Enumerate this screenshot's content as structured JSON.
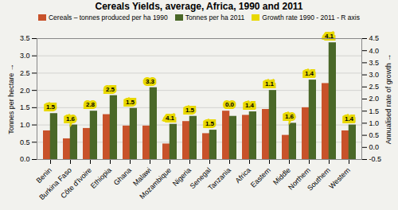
{
  "chart_data": {
    "type": "bar",
    "title": "Cereals Yields, average, Africa, 1990 and 2011",
    "categories": [
      "Benin",
      "Burkina Faso",
      "Côte d'Ivoire",
      "Ethiopia",
      "Ghana",
      "Malawi",
      "Mozambique",
      "Nigeria",
      "Senegal",
      "Tanzania",
      "Africa",
      "Eastern",
      "Middle",
      "Northern",
      "Southern",
      "Western"
    ],
    "series": [
      {
        "name": "Cereals – tonnes produced per ha 1990",
        "color": "#C8522A",
        "type": "bar",
        "values": [
          0.83,
          0.6,
          0.9,
          1.3,
          0.97,
          0.97,
          0.45,
          1.1,
          0.75,
          1.4,
          1.28,
          1.45,
          0.7,
          1.5,
          2.2,
          0.83
        ]
      },
      {
        "name": "Tonnes per ha 2011",
        "color": "#4A6828",
        "type": "bar",
        "values": [
          1.33,
          1.0,
          1.4,
          1.85,
          1.48,
          2.08,
          1.02,
          1.25,
          0.85,
          1.25,
          1.38,
          2.0,
          1.05,
          2.3,
          3.38,
          1.0
        ]
      },
      {
        "name": "Growth rate 1990 - 2011 - R axis",
        "color": "#E8D800",
        "type": "label",
        "axis": "y2",
        "data_labels": true,
        "values": [
          1.5,
          1.6,
          2.8,
          2.5,
          1.5,
          3.3,
          4.1,
          1.5,
          1.5,
          0.0,
          1.4,
          1.1,
          1.6,
          1.4,
          4.1,
          1.4
        ],
        "value_labels": [
          "1.5",
          "1.6",
          "2.8",
          "2.5",
          "1.5",
          "3.3",
          "4.1",
          "1.5",
          "1.5",
          "0.0",
          "1.4",
          "1.1",
          "1.6",
          "1.4",
          "4.1",
          "1.4"
        ]
      }
    ],
    "ylabel": "Tonnes per hectare",
    "y2label": "Annualised rate of growth",
    "ylim": [
      0,
      3.5
    ],
    "yticks": [
      {
        "value": 0,
        "label": "0.0"
      },
      0.5,
      {
        "value": 1,
        "label": "1.0"
      },
      1.5,
      {
        "value": 2,
        "label": "2.0"
      },
      2.5,
      {
        "value": 3,
        "label": "3.0"
      },
      3.5
    ],
    "y2lim": [
      -0.5,
      4.5
    ],
    "y2ticks": [
      -0.5,
      {
        "value": 0,
        "label": "0.0"
      },
      0.5,
      {
        "value": 1,
        "label": "1.0"
      },
      1.5,
      {
        "value": 2,
        "label": "2.0"
      },
      2.5,
      {
        "value": 3,
        "label": "3.0"
      },
      3.5,
      {
        "value": 4,
        "label": "4.0"
      },
      4.5
    ],
    "grid": true,
    "legend": "top"
  }
}
